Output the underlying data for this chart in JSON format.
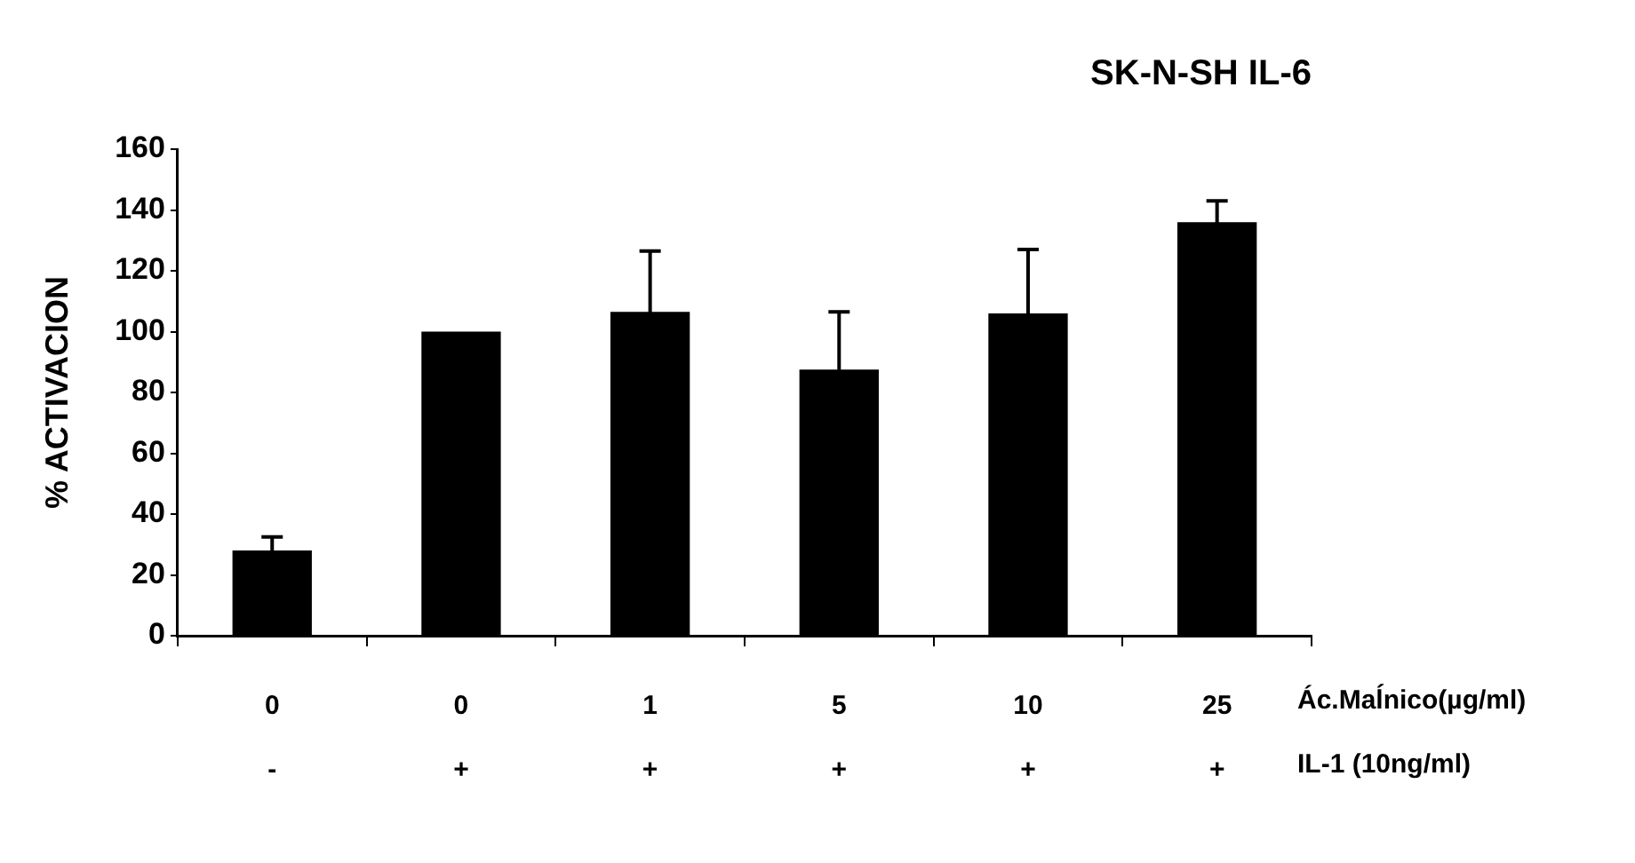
{
  "chart_data": {
    "type": "bar",
    "title": "SK-N-SH IL-6",
    "ylabel": "% ACTIVACION",
    "categories": [
      "0\n-",
      "0\n+",
      "1\n+",
      "5\n+",
      "10\n+",
      "25\n+"
    ],
    "values": [
      28,
      100,
      106.5,
      87.5,
      106,
      136
    ],
    "errors": [
      4.5,
      null,
      20,
      19,
      21,
      7
    ],
    "color": "#000000",
    "ylim": [
      0,
      160
    ],
    "yticks": [
      0,
      20,
      40,
      60,
      80,
      100,
      120,
      140,
      160
    ],
    "grid": false,
    "annotations": [
      "Ác.Maĺnico(µg/ml)",
      "IL-1 (10ng/ml)"
    ]
  }
}
